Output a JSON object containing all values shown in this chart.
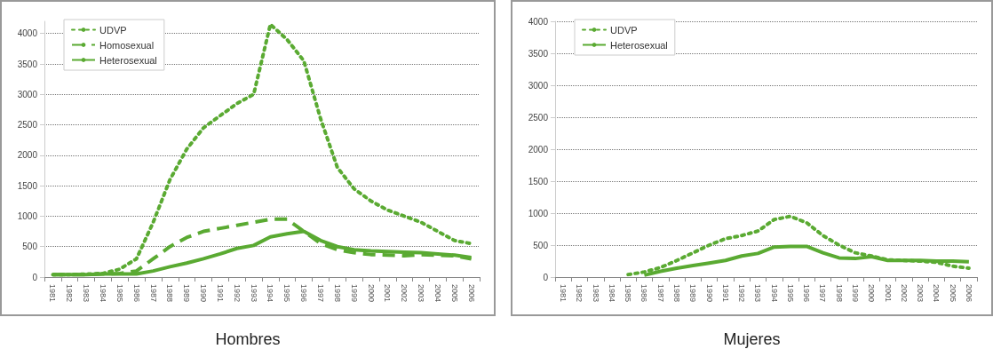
{
  "chart_data": [
    {
      "type": "line",
      "title": "Hombres",
      "categories": [
        "1981",
        "1982",
        "1983",
        "1984",
        "1985",
        "1986",
        "1987",
        "1988",
        "1989",
        "1990",
        "1991",
        "1992",
        "1993",
        "1994",
        "1995",
        "1996",
        "1997",
        "1998",
        "1999",
        "2000",
        "2001",
        "2002",
        "2003",
        "2004",
        "2005",
        "2006"
      ],
      "series": [
        {
          "name": "UDVP",
          "color": "#5aaa32",
          "line_style": "dotted",
          "values": [
            40,
            40,
            50,
            60,
            130,
            300,
            900,
            1600,
            2100,
            2450,
            2650,
            2850,
            3000,
            4150,
            3900,
            3550,
            2600,
            1800,
            1450,
            1250,
            1100,
            1000,
            900,
            750,
            600,
            550
          ]
        },
        {
          "name": "Homosexual",
          "color": "#5aaa32",
          "line_style": "dashed",
          "values": [
            40,
            40,
            40,
            50,
            60,
            100,
            300,
            500,
            650,
            750,
            800,
            850,
            900,
            950,
            950,
            750,
            550,
            450,
            400,
            370,
            360,
            350,
            370,
            360,
            350,
            300
          ]
        },
        {
          "name": "Heterosexual",
          "color": "#5aaa32",
          "line_style": "solid",
          "values": [
            40,
            40,
            40,
            50,
            50,
            50,
            100,
            170,
            230,
            300,
            380,
            470,
            520,
            660,
            710,
            750,
            600,
            500,
            450,
            430,
            420,
            410,
            400,
            380,
            360,
            320
          ]
        }
      ],
      "ylim": [
        0,
        4200
      ],
      "yticks": [
        0,
        500,
        1000,
        1500,
        2000,
        2500,
        3000,
        3500,
        4000
      ],
      "grid": "y",
      "legend": "top left",
      "marker": "none"
    },
    {
      "type": "line",
      "title": "Mujeres",
      "categories": [
        "1981",
        "1982",
        "1983",
        "1984",
        "1985",
        "1986",
        "1987",
        "1988",
        "1989",
        "1990",
        "1991",
        "1992",
        "1993",
        "1994",
        "1995",
        "1996",
        "1997",
        "1998",
        "1999",
        "2000",
        "2001",
        "2002",
        "2003",
        "2004",
        "2005",
        "2006"
      ],
      "series": [
        {
          "name": "UDVP",
          "color": "#5aaa32",
          "line_style": "dotted",
          "values": [
            null,
            null,
            null,
            null,
            40,
            80,
            150,
            260,
            380,
            500,
            600,
            650,
            720,
            900,
            950,
            850,
            650,
            500,
            380,
            330,
            270,
            260,
            250,
            230,
            170,
            140
          ]
        },
        {
          "name": "Heterosexual",
          "color": "#5aaa32",
          "line_style": "solid",
          "values": [
            null,
            null,
            null,
            null,
            null,
            30,
            90,
            140,
            180,
            220,
            260,
            330,
            370,
            470,
            480,
            480,
            380,
            300,
            290,
            320,
            260,
            260,
            260,
            250,
            250,
            240
          ]
        }
      ],
      "ylim": [
        0,
        4000
      ],
      "yticks": [
        0,
        500,
        1000,
        1500,
        2000,
        2500,
        3000,
        3500,
        4000
      ],
      "grid": "y",
      "legend": "top left",
      "marker": "none"
    }
  ]
}
